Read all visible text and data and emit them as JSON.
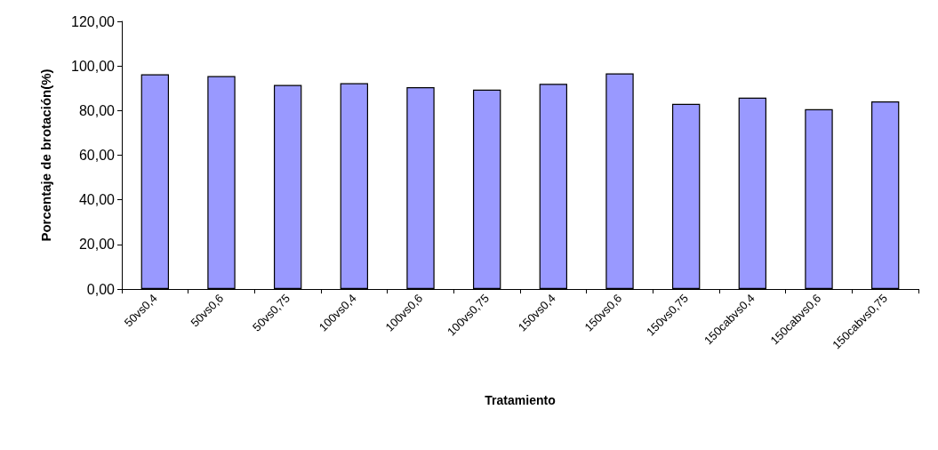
{
  "chart_data": {
    "type": "bar",
    "xlabel": "Tratamiento",
    "ylabel": "Porcentaje de brotación(%)",
    "categories": [
      "50vs0,4",
      "50vs0,6",
      "50vs0,75",
      "100vs0,4",
      "100vs0,6",
      "100vs0,75",
      "150vs0,4",
      "150vs0,6",
      "150vs0,75",
      "150cabvs0,4",
      "150cabvs0,6",
      "150cabvs0,75"
    ],
    "values": [
      96.3,
      95.5,
      91.5,
      92.3,
      90.5,
      89.4,
      92.0,
      96.7,
      83.0,
      85.8,
      80.6,
      84.1
    ],
    "color": "#9999ff",
    "ylim": [
      0,
      120
    ],
    "yticks": [
      {
        "value": 0,
        "label": "0,00"
      },
      {
        "value": 20,
        "label": "20,00"
      },
      {
        "value": 40,
        "label": "40,00"
      },
      {
        "value": 60,
        "label": "60,00"
      },
      {
        "value": 80,
        "label": "80,00"
      },
      {
        "value": 100,
        "label": "100,00"
      },
      {
        "value": 120,
        "label": "120,00"
      }
    ],
    "grid": false
  }
}
